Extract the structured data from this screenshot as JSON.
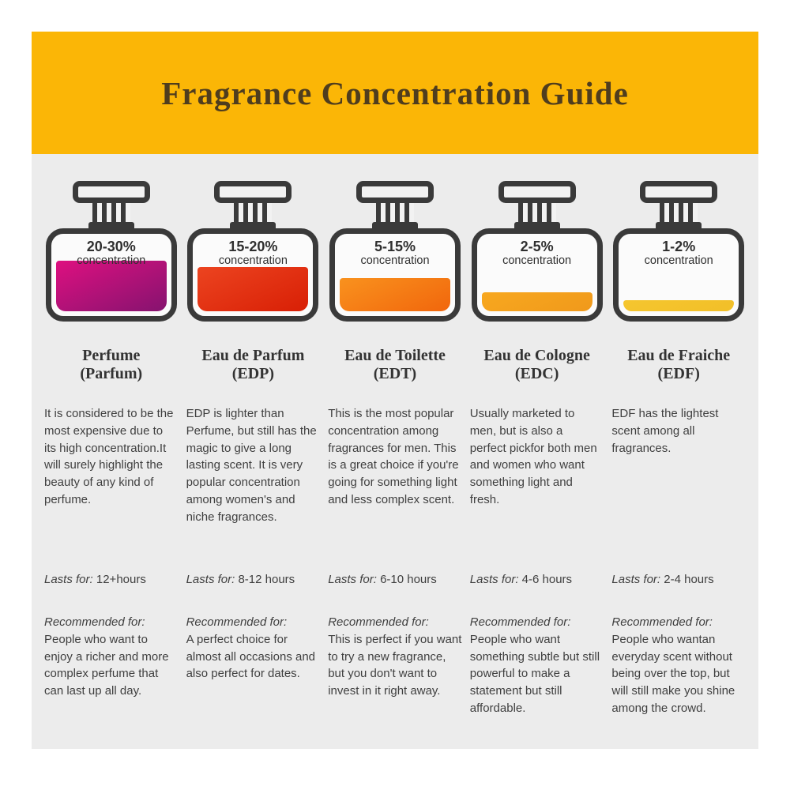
{
  "page": {
    "background": "#ffffff",
    "panel_background": "#ececec"
  },
  "header": {
    "title": "Fragrance Concentration Guide",
    "background": "#fbb606",
    "text_color": "#4f3d1e"
  },
  "labels": {
    "concentration": "concentration",
    "lasts_for": "Lasts for:",
    "recommended_for": "Recommended for:"
  },
  "bottle_outline_color": "#3a3a3a",
  "columns": [
    {
      "concentration": "20-30%",
      "fill": {
        "height_pct": 62,
        "top": "#de1080",
        "bottom": "#85136f"
      },
      "name": "Perfume",
      "abbr": "(Parfum)",
      "description": "It is considered to be the most expensive due to its high concentration.It will surely highlight the beauty of any kind of perfume.",
      "lasts": "12+hours",
      "recommended": "People who want to enjoy a richer and more complex perfume that can last up all day."
    },
    {
      "concentration": "15-20%",
      "fill": {
        "height_pct": 54,
        "top": "#ec4420",
        "bottom": "#d81f05"
      },
      "name": "Eau de Parfum",
      "abbr": "(EDP)",
      "description": "EDP is lighter than Perfume, but still has the magic to give a long lasting scent. It is very popular concentration among women's and niche fragrances.",
      "lasts": "8-12 hours",
      "recommended": "A perfect choice for almost all occasions and also perfect for dates."
    },
    {
      "concentration": "5-15%",
      "fill": {
        "height_pct": 40,
        "top": "#f9921e",
        "bottom": "#f1660c"
      },
      "name": "Eau de Toilette",
      "abbr": "(EDT)",
      "description": "This is the most popular concentration among fragrances for men. This is a great choice if you're going for something light and less complex scent.",
      "lasts": "6-10 hours",
      "recommended": "This is perfect if you want to try a new fragrance, but you don't want to invest in it right away."
    },
    {
      "concentration": "2-5%",
      "fill": {
        "height_pct": 23,
        "top": "#f8a81f",
        "bottom": "#f0991b"
      },
      "name": "Eau de Cologne",
      "abbr": "(EDC)",
      "description": "Usually marketed to men, but is also a perfect pickfor both men and women who want something light and fresh.",
      "lasts": "4-6 hours",
      "recommended": "People who want something subtle but still powerful to make a statement but still affordable."
    },
    {
      "concentration": "1-2%",
      "fill": {
        "height_pct": 13,
        "top": "#f5c62f",
        "bottom": "#f2bf28"
      },
      "name": "Eau de Fraiche",
      "abbr": "(EDF)",
      "description": "EDF has the lightest scent among all fragrances.",
      "lasts": "2-4 hours",
      "recommended": "People who wantan everyday scent without being over the top, but will still make you shine among the crowd."
    }
  ]
}
